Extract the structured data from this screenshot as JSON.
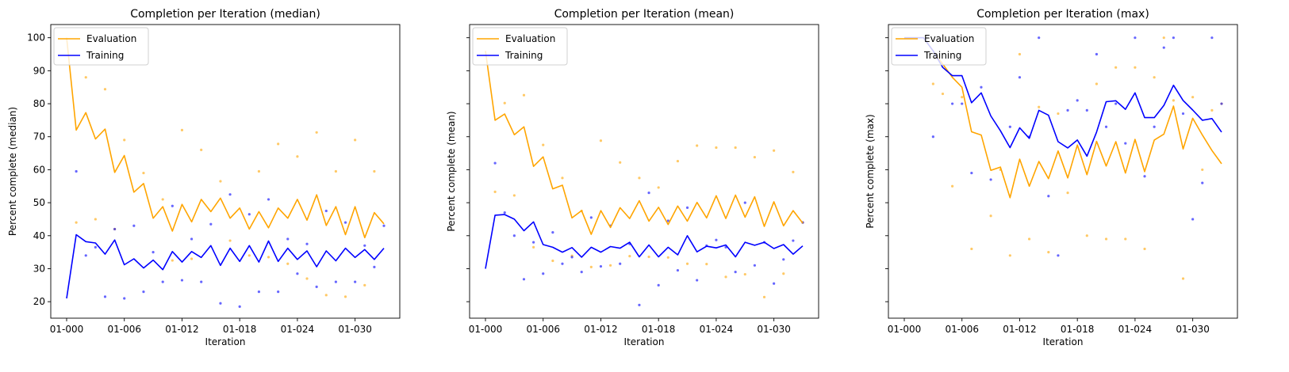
{
  "chart_data": [
    {
      "type": "line",
      "title": "Completion per Iteration (median)",
      "xlabel": "Iteration",
      "ylabel": "Percent complete (median)",
      "x_tick_labels": [
        "01-000",
        "01-006",
        "01-012",
        "01-018",
        "01-024",
        "01-030"
      ],
      "x_tick_positions": [
        0,
        6,
        12,
        18,
        24,
        30
      ],
      "ylim": [
        15,
        104
      ],
      "yticks": [
        20,
        30,
        40,
        50,
        60,
        70,
        80,
        90,
        100
      ],
      "show_y_tick_labels": true,
      "legend_position": "top-left",
      "series": [
        {
          "name": "Evaluation",
          "color": "#FFA500",
          "values": [
            100,
            72,
            77.3,
            69.3,
            72.3,
            59.2,
            64.3,
            53.2,
            55.8,
            45.3,
            48.8,
            41.4,
            49.5,
            44.2,
            51,
            47.3,
            51.4,
            45.3,
            48.4,
            42,
            47.3,
            42.4,
            48.4,
            45.3,
            51,
            44.7,
            52.4,
            43.1,
            48.8,
            40.3,
            48.8,
            39.4,
            47,
            43.6
          ]
        },
        {
          "name": "Training",
          "color": "#0000FF",
          "values": [
            21,
            40.3,
            38.2,
            37.8,
            34.4,
            38.7,
            31.2,
            33,
            30.2,
            32.6,
            29.7,
            35.2,
            32,
            35.2,
            33.4,
            37,
            31,
            36.2,
            32.2,
            37,
            32,
            38.4,
            32.2,
            36.2,
            32.8,
            35.4,
            30.6,
            35.4,
            32.4,
            36.2,
            33.4,
            35.8,
            32.8,
            36.2
          ]
        }
      ],
      "scatter": [
        {
          "name": "Evaluation samples",
          "color": "#FFA500",
          "x": [
            1,
            2,
            3,
            4,
            5,
            6,
            8,
            10,
            11,
            12,
            13,
            14,
            16,
            17,
            19,
            20,
            21,
            22,
            23,
            24,
            25,
            26,
            27,
            28,
            29,
            30,
            31,
            32
          ],
          "y": [
            44,
            88,
            45,
            84.4,
            42,
            69,
            59,
            51,
            32.5,
            72,
            33,
            66,
            56.5,
            38.5,
            34,
            59.5,
            33.5,
            67.8,
            31.5,
            64,
            27,
            71.3,
            22,
            59.5,
            21.5,
            69,
            25,
            59.5
          ]
        },
        {
          "name": "Training samples",
          "color": "#0000FF",
          "x": [
            1,
            2,
            3,
            4,
            5,
            6,
            7,
            8,
            9,
            10,
            11,
            12,
            13,
            14,
            15,
            16,
            17,
            18,
            19,
            20,
            21,
            22,
            23,
            24,
            25,
            26,
            27,
            28,
            29,
            30,
            31,
            32,
            33
          ],
          "y": [
            59.5,
            34,
            36.5,
            21.5,
            42,
            21,
            43,
            23,
            35,
            26,
            49,
            26.5,
            39,
            26,
            43.5,
            19.5,
            52.5,
            18.5,
            46.5,
            23,
            51,
            23,
            39,
            28.5,
            37.5,
            24.5,
            47.5,
            26,
            44,
            26,
            37,
            30.5,
            43
          ]
        }
      ]
    },
    {
      "type": "line",
      "title": "Completion per Iteration (mean)",
      "xlabel": "Iteration",
      "ylabel": "Percent complete (mean)",
      "x_tick_labels": [
        "01-000",
        "01-006",
        "01-012",
        "01-018",
        "01-024",
        "01-030"
      ],
      "x_tick_positions": [
        0,
        6,
        12,
        18,
        24,
        30
      ],
      "ylim": [
        15,
        104
      ],
      "yticks": [
        20,
        30,
        40,
        50,
        60,
        70,
        80,
        90,
        100
      ],
      "show_y_tick_labels": false,
      "legend_position": "top-left",
      "series": [
        {
          "name": "Evaluation",
          "color": "#FFA500",
          "values": [
            96,
            75,
            76.9,
            70.6,
            73,
            61,
            63.9,
            54.2,
            55.3,
            45.4,
            47.6,
            40.4,
            47.6,
            42.5,
            48.5,
            45.2,
            50.6,
            44.4,
            48.6,
            43.4,
            49,
            44.4,
            50.1,
            45.4,
            52.1,
            45.2,
            52.3,
            45.6,
            51.8,
            42.8,
            50.3,
            43,
            47.6,
            43.8
          ]
        },
        {
          "name": "Training",
          "color": "#0000FF",
          "values": [
            30,
            46.2,
            46.4,
            45,
            41.5,
            44.2,
            37.3,
            36.5,
            35,
            36.4,
            33.5,
            36.5,
            35,
            36.7,
            36.2,
            38,
            33.6,
            37.2,
            33.6,
            36.5,
            34.2,
            40,
            35.1,
            36.8,
            36.3,
            37.2,
            33.6,
            38,
            37.1,
            38,
            36.1,
            37.3,
            34.4,
            36.9
          ]
        }
      ],
      "scatter": [
        {
          "name": "Evaluation samples",
          "color": "#FFA500",
          "x": [
            1,
            2,
            3,
            4,
            5,
            6,
            7,
            8,
            9,
            10,
            11,
            12,
            13,
            14,
            15,
            16,
            17,
            18,
            19,
            20,
            21,
            22,
            23,
            24,
            25,
            26,
            27,
            28,
            29,
            30,
            31,
            32,
            33
          ],
          "y": [
            53.3,
            80.2,
            52.2,
            82.6,
            36.5,
            67.5,
            32.4,
            57.5,
            33.9,
            47.5,
            30.5,
            68.8,
            31,
            62.2,
            33.8,
            57.5,
            33.6,
            54.6,
            33.4,
            62.6,
            31.5,
            67.3,
            31.4,
            66.7,
            27.5,
            66.7,
            28.3,
            63.8,
            21.4,
            65.8,
            28.5,
            59.3,
            44
          ]
        },
        {
          "name": "Training samples",
          "color": "#0000FF",
          "x": [
            1,
            2,
            3,
            4,
            5,
            6,
            7,
            8,
            9,
            10,
            11,
            12,
            13,
            14,
            15,
            16,
            17,
            18,
            19,
            20,
            21,
            22,
            23,
            24,
            25,
            26,
            27,
            28,
            29,
            30,
            31,
            32,
            33
          ],
          "y": [
            62,
            47,
            40,
            26.8,
            38,
            28.5,
            41,
            31.5,
            33.5,
            29,
            45.5,
            30.7,
            43,
            31.5,
            37.5,
            19,
            53,
            25,
            44.5,
            29.5,
            48.5,
            26.5,
            37,
            38.7,
            36.5,
            29,
            50,
            31,
            38,
            25.5,
            32.8,
            38.5,
            44
          ]
        }
      ]
    },
    {
      "type": "line",
      "title": "Completion per Iteration (max)",
      "xlabel": "Iteration",
      "ylabel": "Percent complete (max)",
      "x_tick_labels": [
        "01-000",
        "01-006",
        "01-012",
        "01-018",
        "01-024",
        "01-030"
      ],
      "x_tick_positions": [
        0,
        6,
        12,
        18,
        24,
        30
      ],
      "ylim": [
        15,
        104
      ],
      "yticks": [
        20,
        30,
        40,
        50,
        60,
        70,
        80,
        90,
        100
      ],
      "show_y_tick_labels": false,
      "legend_position": "top-left",
      "series": [
        {
          "name": "Evaluation",
          "color": "#FFA500",
          "values": [
            100,
            100,
            100,
            96,
            92,
            88,
            85,
            71.5,
            70.5,
            59.8,
            60.8,
            51.5,
            63.2,
            55,
            62.5,
            57.3,
            65.7,
            57.5,
            67.5,
            58.5,
            68.6,
            61.1,
            68.5,
            59,
            69.2,
            59.4,
            69,
            70.8,
            79.3,
            66.3,
            75.6,
            70.5,
            65.8,
            61.8
          ]
        },
        {
          "name": "Training",
          "color": "#0000FF",
          "values": [
            100,
            100,
            100,
            96,
            91,
            88.5,
            88.5,
            80.3,
            83.3,
            76.3,
            71.8,
            66.7,
            72.7,
            69.5,
            78,
            76.5,
            68.5,
            66.6,
            69,
            64.1,
            71.4,
            80.6,
            80.9,
            78.3,
            83.3,
            75.8,
            75.8,
            79.5,
            85.6,
            81,
            78.1,
            75,
            75.5,
            71.4
          ]
        }
      ],
      "scatter": [
        {
          "name": "Evaluation samples",
          "color": "#FFA500",
          "x": [
            3,
            4,
            5,
            6,
            7,
            9,
            10,
            11,
            12,
            13,
            14,
            15,
            16,
            17,
            19,
            20,
            21,
            22,
            23,
            24,
            25,
            26,
            27,
            28,
            29,
            30,
            31,
            32,
            33
          ],
          "y": [
            86,
            83,
            55,
            82,
            36,
            46,
            60,
            34,
            95,
            39,
            79,
            35,
            77,
            53,
            40,
            86,
            39,
            91,
            39,
            91,
            36,
            88,
            100,
            81,
            27,
            82,
            60,
            78,
            80
          ]
        },
        {
          "name": "Training samples",
          "color": "#0000FF",
          "x": [
            3,
            5,
            6,
            7,
            8,
            9,
            11,
            12,
            13,
            14,
            15,
            16,
            17,
            18,
            19,
            20,
            21,
            22,
            23,
            24,
            25,
            26,
            27,
            28,
            29,
            30,
            31,
            32,
            33
          ],
          "y": [
            70,
            80,
            80,
            59,
            85,
            57,
            73,
            88,
            70,
            100,
            52,
            34,
            78,
            81,
            78,
            95,
            73,
            80,
            68,
            100,
            58,
            73,
            97,
            100,
            77,
            45,
            56,
            100,
            80
          ]
        }
      ]
    }
  ]
}
